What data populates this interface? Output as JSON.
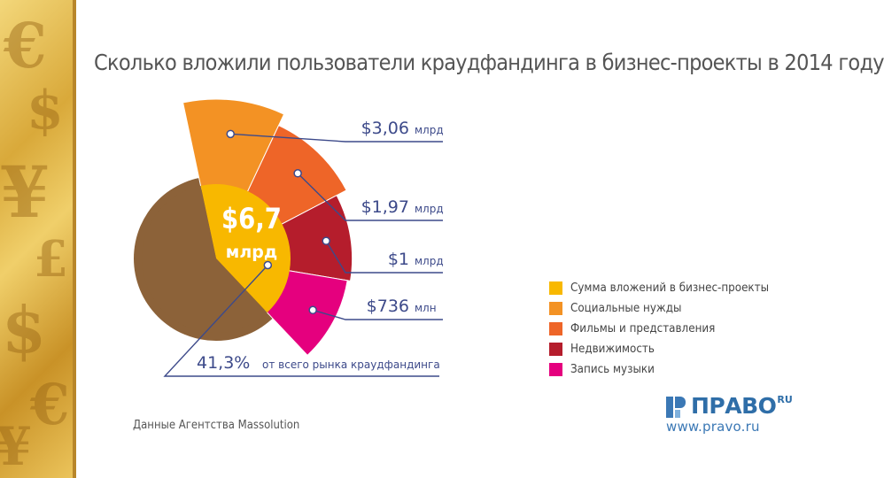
{
  "page": {
    "title": "Сколько вложили пользователи краудфандинга в бизнес-проекты в 2014 году",
    "source": "Данные Агентства Massolution"
  },
  "logo": {
    "name": "ПРАВО",
    "superscript": "RU",
    "url": "www.pravo.ru"
  },
  "colors": {
    "business": "#f8b800",
    "social": "#f39224",
    "films": "#ee6528",
    "realty": "#b51d2c",
    "music": "#e5007e",
    "rest": "#8c6239",
    "leader": "#3d4a8a"
  },
  "chart_data": {
    "type": "pie",
    "title": "Сколько вложили пользователи краудфандинга в бизнес-проекты в 2014 году",
    "center_value": "$6,7",
    "center_unit": "млрд",
    "share_note": {
      "value": "41,3%",
      "text": "от всего рынка краудфандинга",
      "percent": 41.3
    },
    "segments": [
      {
        "name": "Социальные нужды",
        "amount": 3.06,
        "unit": "млрд",
        "value_label": "$3,06",
        "unit_label": "млрд",
        "color_key": "social"
      },
      {
        "name": "Фильмы и представления",
        "amount": 1.97,
        "unit": "млрд",
        "value_label": "$1,97",
        "unit_label": "млрд",
        "color_key": "films"
      },
      {
        "name": "Недвижимость",
        "amount": 1.0,
        "unit": "млрд",
        "value_label": "$1",
        "unit_label": "млрд",
        "color_key": "realty"
      },
      {
        "name": "Запись музыки",
        "amount": 0.736,
        "unit": "млрд",
        "value_label": "$736",
        "unit_label": "млн",
        "color_key": "music"
      }
    ],
    "legend": [
      {
        "label": "Сумма вложений в бизнес-проекты",
        "color_key": "business"
      },
      {
        "label": "Социальные нужды",
        "color_key": "social"
      },
      {
        "label": "Фильмы и представления",
        "color_key": "films"
      },
      {
        "label": "Недвижимость",
        "color_key": "realty"
      },
      {
        "label": "Запись музыки",
        "color_key": "music"
      }
    ]
  }
}
